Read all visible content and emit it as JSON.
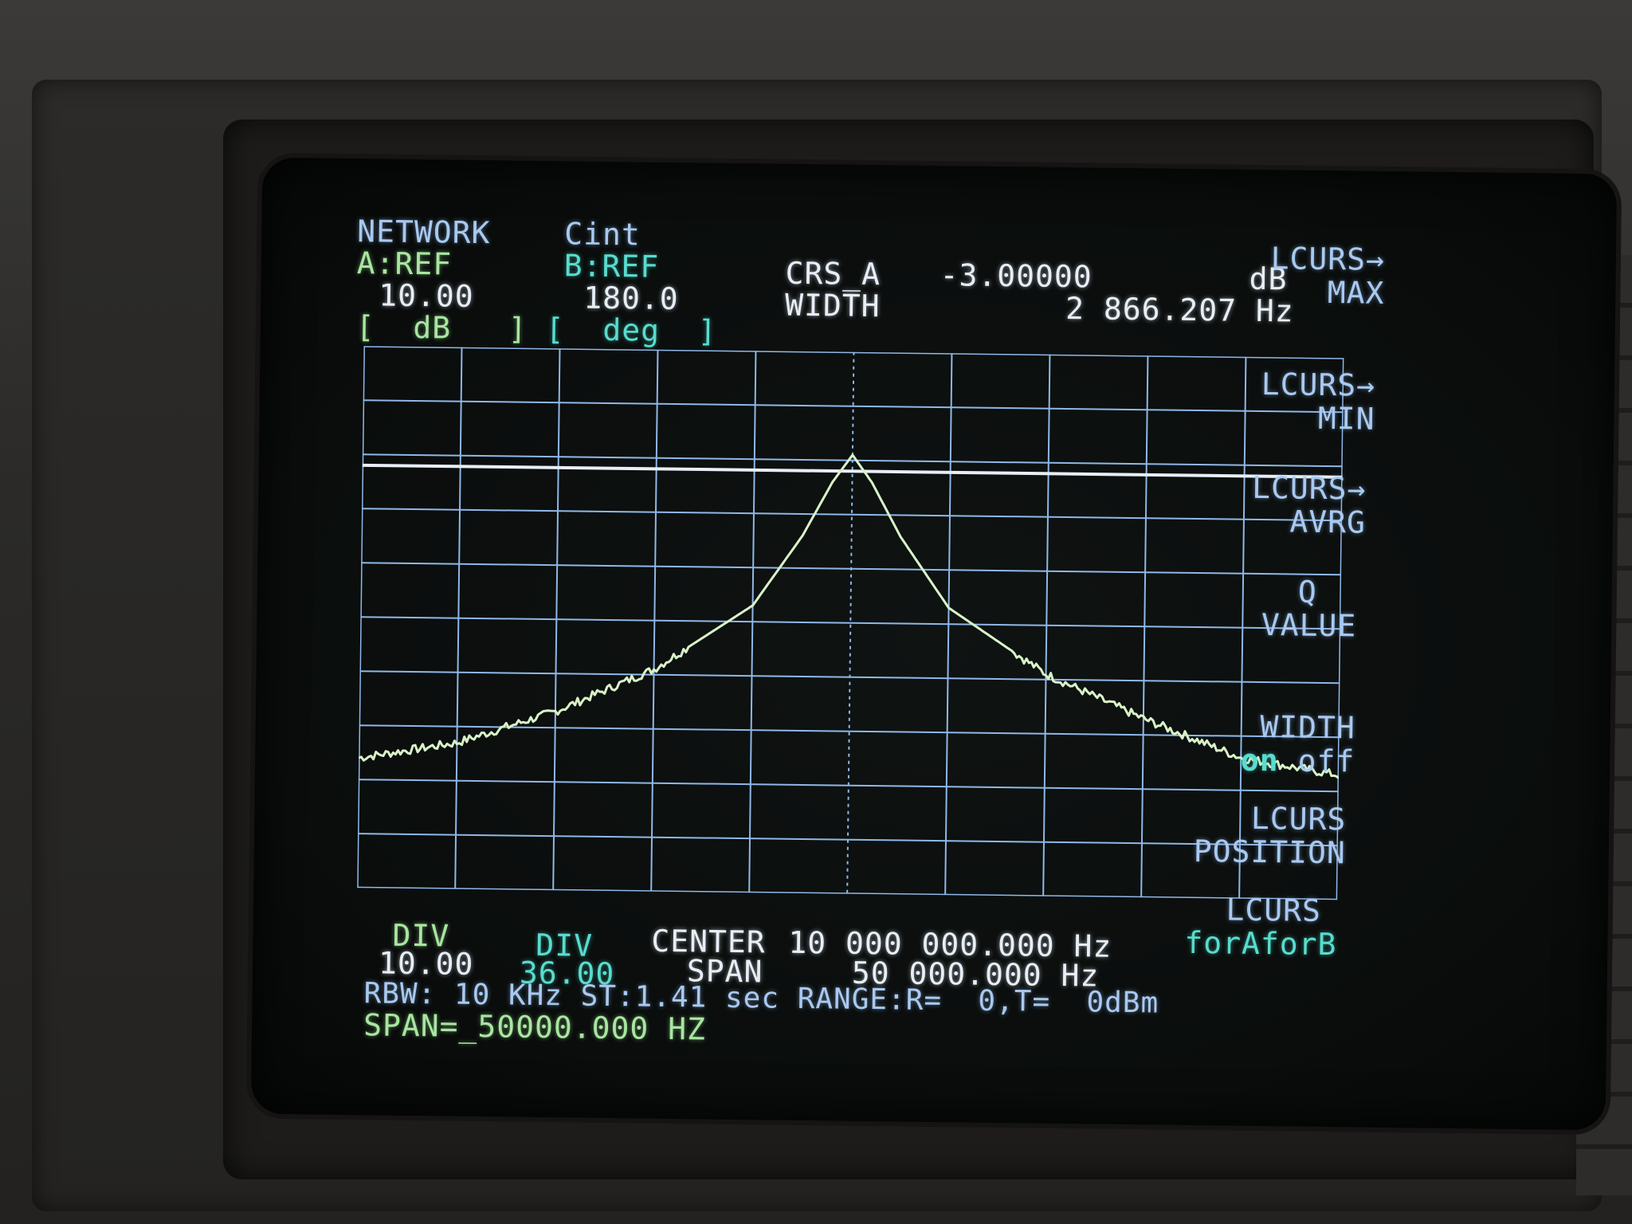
{
  "header": {
    "mode": "NETWORK",
    "source": "Cint",
    "ref_a_label": "A:REF",
    "ref_a_value": "10.00",
    "ref_b_label": "B:REF",
    "ref_b_value": "180.0",
    "unit_a": "[  dB   ]",
    "unit_b": "[  deg  ]",
    "cursor_label": "CRS_A",
    "cursor_value": "-3.00000",
    "cursor_unit": "dB",
    "width_label": "WIDTH",
    "width_value": "2 866.207 Hz"
  },
  "softkeys": [
    {
      "line1": "LCURS→",
      "line2": "MAX"
    },
    {
      "line1": "LCURS→",
      "line2": "MIN"
    },
    {
      "line1": "LCURS→",
      "line2": "AVRG"
    },
    {
      "line1": "Q",
      "line2": "VALUE"
    },
    {
      "line1": "WIDTH",
      "line2_on": "on",
      "line2_off": "off"
    },
    {
      "line1": "LCURS",
      "line2": "POSITION"
    },
    {
      "line1": "LCURS",
      "line2": "forAforB"
    }
  ],
  "footer": {
    "div_a_label": "DIV",
    "div_a_value": "10.00",
    "div_b_label": "DIV",
    "div_b_value": "36.00",
    "center_label": "CENTER",
    "center_value": "10 000 000.000 Hz",
    "span_label": "SPAN",
    "span_value": "50 000.000 Hz",
    "status_line": "RBW: 10 KHz ST:1.41 sec RANGE:R=  0,T=  0dBm",
    "entry_line": "SPAN=_50000.000 HZ"
  },
  "colors": {
    "trace": "#d9f2c8",
    "grid": "#8fb8e8",
    "cursor_line": "#e8eef6",
    "text_blue": "#a9c9f0",
    "text_cyan": "#58dccf",
    "text_green": "#a8e6a0"
  },
  "chart_data": {
    "type": "line",
    "title": "",
    "xlabel": "",
    "ylabel": "",
    "x_divisions": 10,
    "y_divisions": 10,
    "x_range_hz": [
      9975000,
      10025000
    ],
    "y_ref_db": 10.0,
    "y_div_db": 10.0,
    "cursor_level_db": -3.0,
    "series": [
      {
        "x": [
          9975000,
          9980000,
          9985000,
          9990000,
          9995000,
          9997500,
          9999000,
          10000000,
          10001000,
          10002500,
          10005000,
          10010000,
          10015000,
          10020000,
          10025000
        ],
        "values": [
          -66,
          -63,
          -57,
          -49,
          -37,
          -24,
          -14,
          -9,
          -14,
          -24,
          -37,
          -49,
          -57,
          -64,
          -67
        ]
      }
    ]
  }
}
